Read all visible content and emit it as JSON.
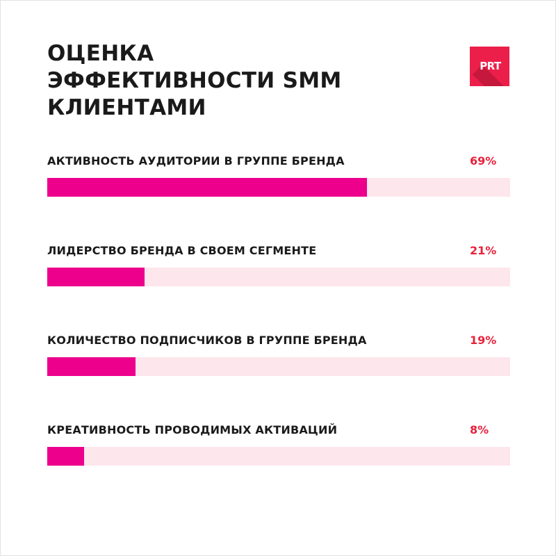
{
  "title_lines": [
    "ОЦЕНКА",
    "ЭФФЕКТИВНОСТИ SMM",
    "КЛИЕНТАМИ"
  ],
  "logo": {
    "text": "PRT",
    "color": "#ec1f4a"
  },
  "colors": {
    "bar": "#ec008c",
    "track": "#fde6ec",
    "value": "#e8223c",
    "text": "#1a1a1a"
  },
  "chart_data": {
    "type": "bar",
    "orientation": "horizontal",
    "categories": [
      "АКТИВНОСТЬ АУДИТОРИИ В ГРУППЕ БРЕНДА",
      "ЛИДЕРСТВО БРЕНДА В СВОЕМ СЕГМЕНТЕ",
      "КОЛИЧЕСТВО ПОДПИСЧИКОВ В ГРУППЕ БРЕНДА",
      "КРЕАТИВНОСТЬ ПРОВОДИМЫХ АКТИВАЦИЙ"
    ],
    "values": [
      69,
      21,
      19,
      8
    ],
    "value_labels": [
      "69%",
      "21%",
      "19%",
      "8%"
    ],
    "xlim": [
      0,
      100
    ],
    "grid": false,
    "legend": "none"
  }
}
